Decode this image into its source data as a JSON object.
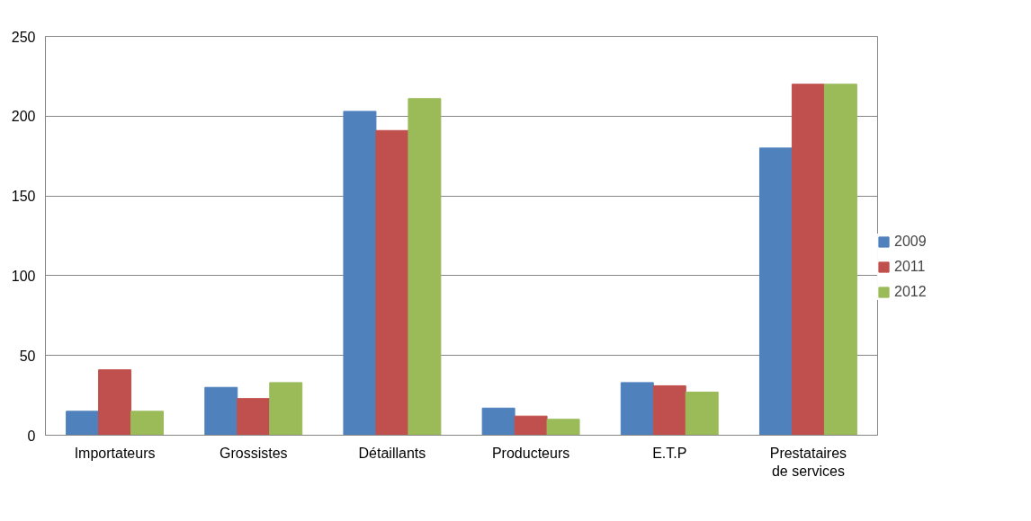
{
  "chart_data": {
    "type": "bar",
    "categories": [
      "Importateurs",
      "Grossistes",
      "Détaillants",
      "Producteurs",
      "E.T.P",
      "Prestataires de services"
    ],
    "series": [
      {
        "name": "2009",
        "color": "#4f81bd",
        "values": [
          15,
          30,
          203,
          17,
          33,
          180
        ]
      },
      {
        "name": "2011",
        "color": "#c0504d",
        "values": [
          41,
          23,
          191,
          12,
          31,
          220
        ]
      },
      {
        "name": "2012",
        "color": "#9bbb59",
        "values": [
          15,
          33,
          211,
          10,
          27,
          220
        ]
      }
    ],
    "ylim": [
      0,
      250
    ],
    "yticks": [
      0,
      50,
      100,
      150,
      200,
      250
    ],
    "grid": "y",
    "legend": "right"
  }
}
